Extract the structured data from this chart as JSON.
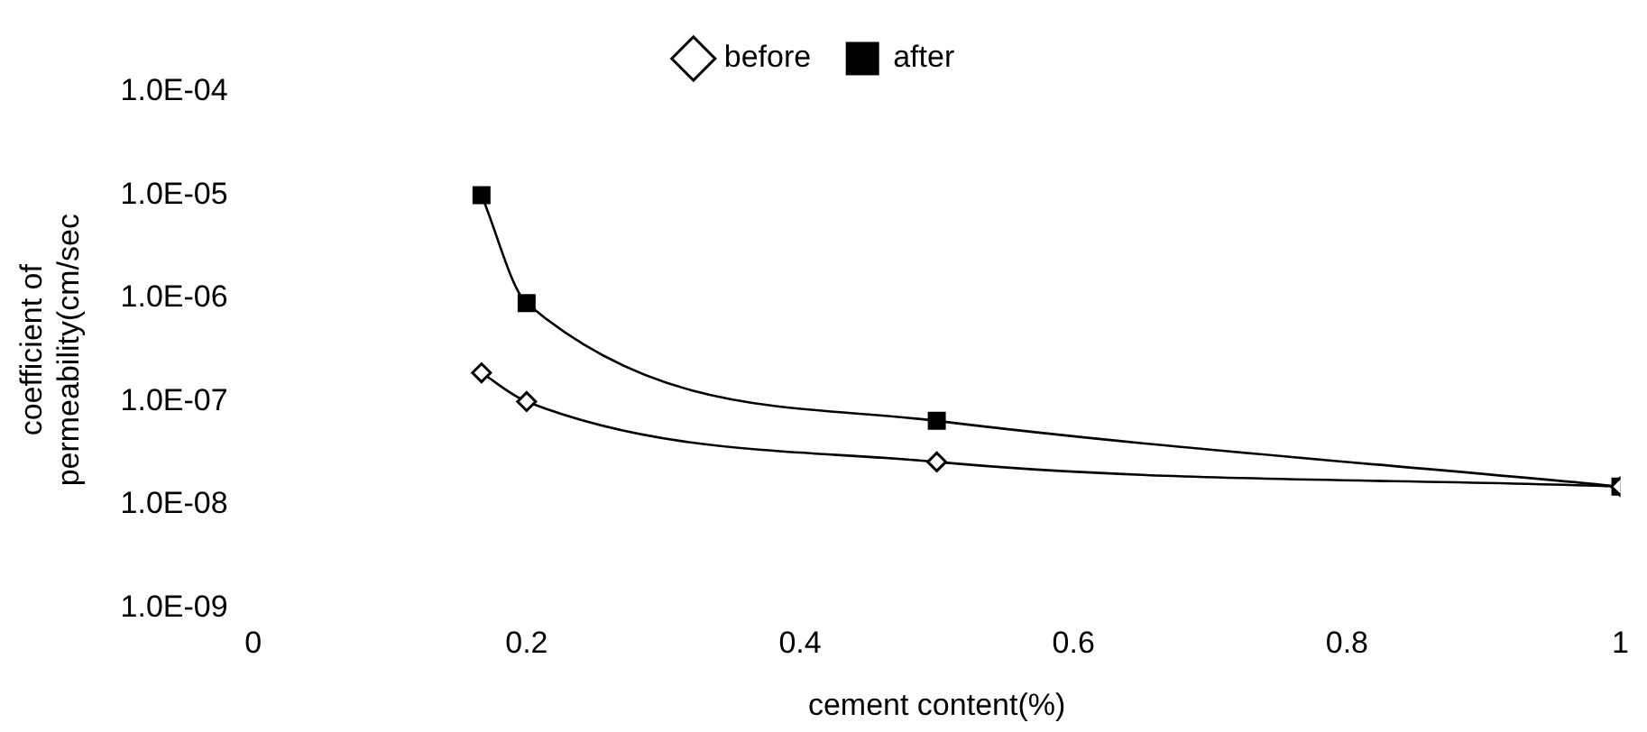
{
  "chart_data": {
    "type": "line",
    "xlabel": "cement content(%)",
    "ylabel": "coefficient of permeability(cm/sec",
    "log": "y",
    "grid": false,
    "legend": "top",
    "xlim": [
      0,
      1
    ],
    "xticks": [
      0,
      0.2,
      0.4,
      0.6,
      0.8,
      1
    ],
    "ylim": [
      1e-09,
      0.0001
    ],
    "yticks": [
      {
        "value": 1e-09,
        "label": "1.0E-09"
      },
      {
        "value": 1e-08,
        "label": "1.0E-08"
      },
      {
        "value": 1e-07,
        "label": "1.0E-07"
      },
      {
        "value": 1e-06,
        "label": "1.0E-06"
      },
      {
        "value": 1e-05,
        "label": "1.0E-05"
      },
      {
        "value": 0.0001,
        "label": "1.0E-04"
      }
    ],
    "series": [
      {
        "name": "before",
        "color": "#000000",
        "marker": "diamond",
        "x": [
          0.167,
          0.2,
          0.5,
          1
        ],
        "values": [
          1.9e-07,
          1e-07,
          2.6e-08,
          1.5e-08
        ]
      },
      {
        "name": "after",
        "color": "#000000",
        "marker": "square",
        "x": [
          0.167,
          0.2,
          0.5,
          1
        ],
        "values": [
          1e-05,
          9e-07,
          6.5e-08,
          1.5e-08
        ]
      }
    ]
  }
}
